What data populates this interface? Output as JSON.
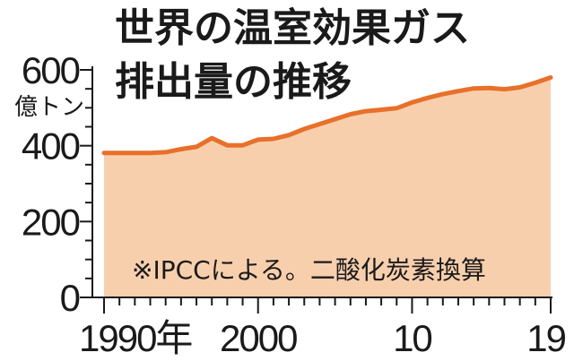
{
  "title_line1": "世界の温室効果ガス",
  "title_line2": "排出量の推移",
  "unit": "億トン",
  "note": "※IPCCによる。二酸化炭素換算",
  "colors": {
    "line": "#e8702a",
    "fill": "#f8cfad",
    "text": "#1a1a1a",
    "axis": "#1a1a1a"
  },
  "chart_data": {
    "type": "area",
    "title": "世界の温室効果ガス排出量の推移",
    "ylabel": "億トン",
    "xlabel": "",
    "x": [
      1990,
      1991,
      1992,
      1993,
      1994,
      1995,
      1996,
      1997,
      1998,
      1999,
      2000,
      2001,
      2002,
      2003,
      2004,
      2005,
      2006,
      2007,
      2008,
      2009,
      2010,
      2011,
      2012,
      2013,
      2014,
      2015,
      2016,
      2017,
      2018,
      2019
    ],
    "values": [
      381,
      381,
      381,
      381,
      383,
      391,
      397,
      420,
      401,
      401,
      416,
      418,
      428,
      444,
      457,
      470,
      483,
      491,
      495,
      499,
      514,
      526,
      536,
      544,
      551,
      552,
      549,
      554,
      566,
      580
    ],
    "ylim": [
      0,
      600
    ],
    "yticks": [
      0,
      200,
      400,
      600
    ],
    "xtick_labels": [
      {
        "x": 1990,
        "label": "1990年"
      },
      {
        "x": 2000,
        "label": "2000"
      },
      {
        "x": 2010,
        "label": "10"
      },
      {
        "x": 2019,
        "label": "19"
      }
    ],
    "grid": false,
    "legend": "none"
  }
}
